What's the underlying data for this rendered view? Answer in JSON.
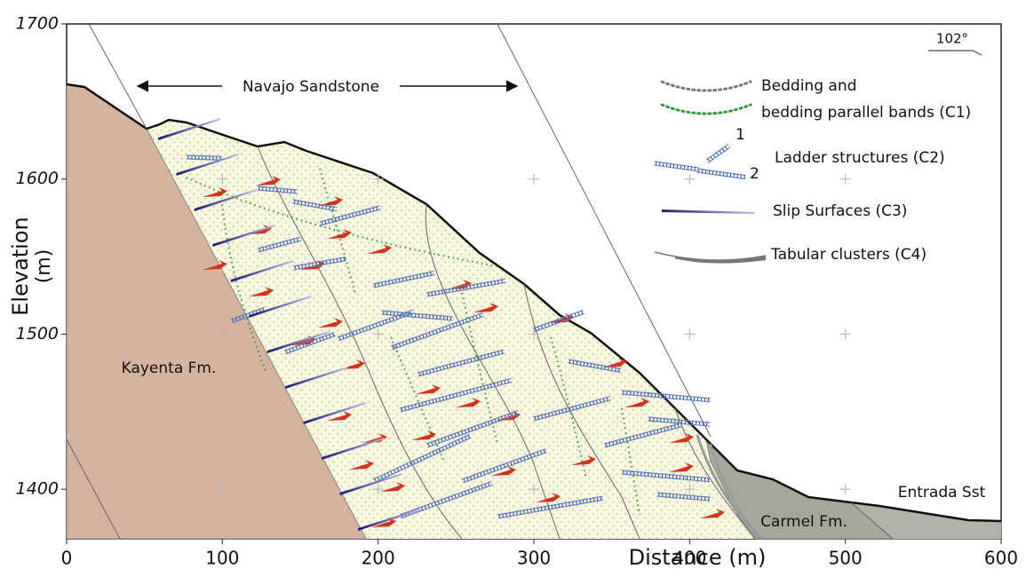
{
  "axes": {
    "x_label": "Distance (m)",
    "y_label": [
      "Elevation",
      "(m)"
    ],
    "xlim": [
      0,
      600
    ],
    "ylim": [
      1368,
      1700
    ],
    "xticks": [
      0,
      100,
      200,
      300,
      400,
      500,
      600
    ],
    "yticks": [
      1400,
      1500,
      1600,
      1700
    ]
  },
  "units": {
    "navajo": "Navajo Sandstone",
    "kayenta": "Kayenta Fm.",
    "carmel": "Carmel Fm.",
    "entrada": "Entrada Sst"
  },
  "orientation": "102°",
  "legend": {
    "c1": [
      "Bedding and",
      "bedding parallel bands (C1)"
    ],
    "c2": "Ladder structures (C2)",
    "c2_marks": [
      "1",
      "2"
    ],
    "c3": "Slip Surfaces (C3)",
    "c4": "Tabular clusters (C4)"
  }
}
